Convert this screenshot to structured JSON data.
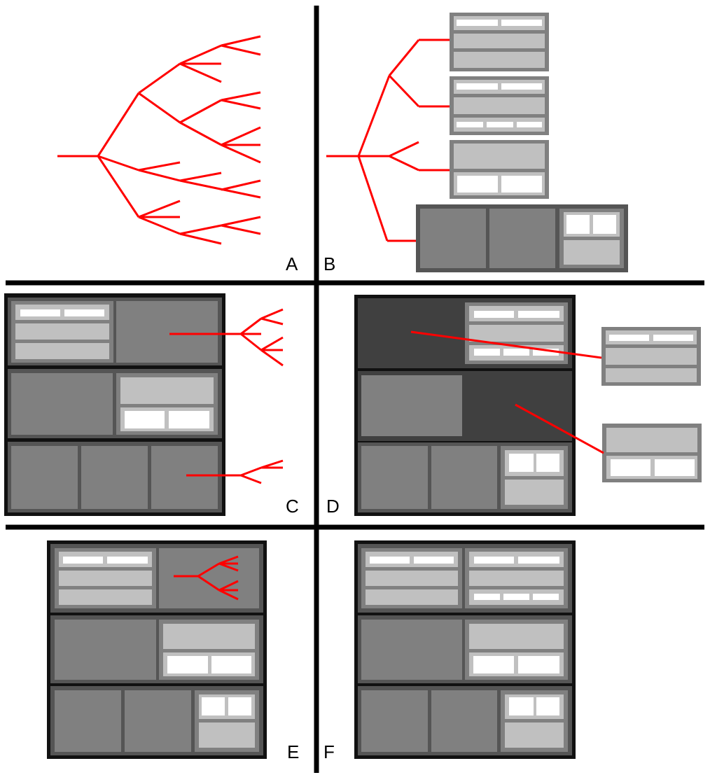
{
  "colors": {
    "background": "#ffffff",
    "divider": "#000000",
    "tree": "#ff0000",
    "frame_outer": "#111111",
    "frame_mid": "#555555",
    "cell_dark": "#808080",
    "cell_darkest": "#404040",
    "block_border": "#808080",
    "block_fill": "#c0c0c0",
    "field": "#ffffff"
  },
  "panels": [
    {
      "id": "A",
      "label": "A"
    },
    {
      "id": "B",
      "label": "B"
    },
    {
      "id": "C",
      "label": "C"
    },
    {
      "id": "D",
      "label": "D"
    },
    {
      "id": "E",
      "label": "E"
    },
    {
      "id": "F",
      "label": "F"
    }
  ]
}
